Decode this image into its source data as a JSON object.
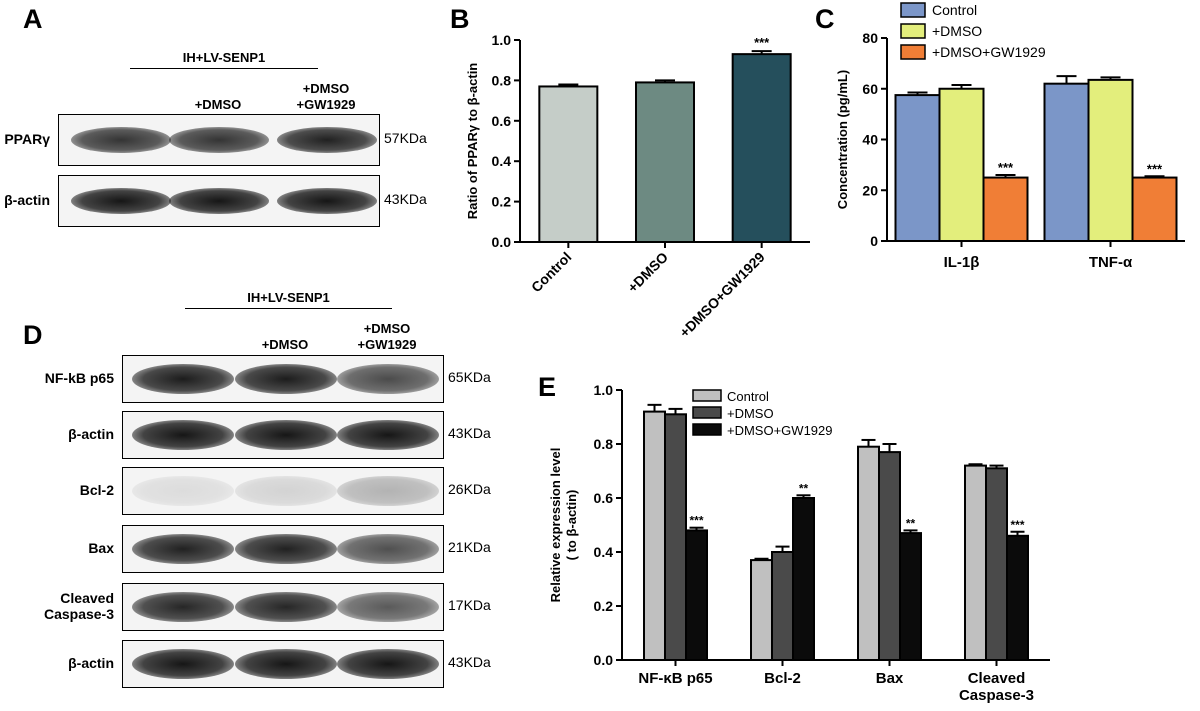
{
  "panels": {
    "a": "A",
    "b": "B",
    "c": "C",
    "d": "D",
    "e": "E"
  },
  "blot_a": {
    "group_label": "IH+LV-SENP1",
    "lane_labels": [
      "",
      "+DMSO",
      "+DMSO\n+GW1929"
    ],
    "rows": [
      {
        "label": "PPARγ",
        "size": "57KDa",
        "intensity": [
          0.82,
          0.82,
          0.9
        ]
      },
      {
        "label": "β-actin",
        "size": "43KDa",
        "intensity": [
          0.95,
          0.95,
          0.95
        ]
      }
    ]
  },
  "blot_d": {
    "group_label": "IH+LV-SENP1",
    "lane_labels": [
      "",
      "+DMSO",
      "+DMSO\n+GW1929"
    ],
    "rows": [
      {
        "label": "NF-kB p65",
        "size": "65KDa",
        "intensity": [
          0.92,
          0.92,
          0.72
        ]
      },
      {
        "label": "β-actin",
        "size": "43KDa",
        "intensity": [
          0.95,
          0.95,
          0.95
        ]
      },
      {
        "label": "Bcl-2",
        "size": "26KDa",
        "intensity": [
          0.1,
          0.14,
          0.28
        ]
      },
      {
        "label": "Bax",
        "size": "21KDa",
        "intensity": [
          0.9,
          0.9,
          0.7
        ]
      },
      {
        "label": "Cleaved\nCaspase-3",
        "size": "17KDa",
        "intensity": [
          0.88,
          0.88,
          0.66
        ]
      },
      {
        "label": "β-actin",
        "size": "43KDa",
        "intensity": [
          0.95,
          0.95,
          0.95
        ]
      }
    ]
  },
  "chart_data": [
    {
      "id": "B",
      "type": "bar",
      "categories": [
        "Control",
        "+DMSO",
        "+DMSO+GW1929"
      ],
      "values": [
        0.77,
        0.79,
        0.93
      ],
      "errors": [
        0.01,
        0.01,
        0.015
      ],
      "significance": [
        "",
        "",
        "***"
      ],
      "colors": [
        "#c5cdc8",
        "#6d8a82",
        "#254f5c"
      ],
      "ylabel": "Ratio of PPARγ to β-actin",
      "ylim": [
        0,
        1.0
      ],
      "yticks": [
        "0.0",
        "0.2",
        "0.4",
        "0.6",
        "0.8",
        "1.0"
      ]
    },
    {
      "id": "C",
      "type": "bar",
      "categories": [
        "IL-1β",
        "TNF-α"
      ],
      "series": [
        {
          "name": "Control",
          "values": [
            57.5,
            62
          ],
          "errors": [
            1,
            3
          ],
          "color": "#7b96c8"
        },
        {
          "name": "+DMSO",
          "values": [
            60,
            63.5
          ],
          "errors": [
            1.5,
            1
          ],
          "color": "#e3ee7c"
        },
        {
          "name": "+DMSO+GW1929",
          "values": [
            25,
            25
          ],
          "errors": [
            1,
            0.5
          ],
          "color": "#f07e36",
          "significance": [
            "***",
            "***"
          ]
        }
      ],
      "ylabel": "Concentration (pg/mL)",
      "ylim": [
        0,
        80
      ],
      "yticks": [
        "0",
        "20",
        "40",
        "60",
        "80"
      ],
      "legend_position": "top-right"
    },
    {
      "id": "E",
      "type": "bar",
      "categories": [
        "NF-κB p65",
        "Bcl-2",
        "Bax",
        "Cleaved\nCaspase-3"
      ],
      "series": [
        {
          "name": "Control",
          "values": [
            0.92,
            0.37,
            0.79,
            0.72
          ],
          "errors": [
            0.025,
            0.005,
            0.025,
            0.005
          ],
          "color": "#c0c0c0"
        },
        {
          "name": "+DMSO",
          "values": [
            0.91,
            0.4,
            0.77,
            0.71
          ],
          "errors": [
            0.02,
            0.02,
            0.03,
            0.01
          ],
          "color": "#4a4a4a"
        },
        {
          "name": "+DMSO+GW1929",
          "values": [
            0.48,
            0.6,
            0.47,
            0.46
          ],
          "errors": [
            0.01,
            0.01,
            0.01,
            0.015
          ],
          "color": "#0b0b0b",
          "significance": [
            "***",
            "**",
            "**",
            "***"
          ]
        }
      ],
      "ylabel": "Relative expression level\n( to β-actin)",
      "ylim": [
        0,
        1.0
      ],
      "yticks": [
        "0.0",
        "0.2",
        "0.4",
        "0.6",
        "0.8",
        "1.0"
      ],
      "legend_position": "top-center"
    }
  ]
}
